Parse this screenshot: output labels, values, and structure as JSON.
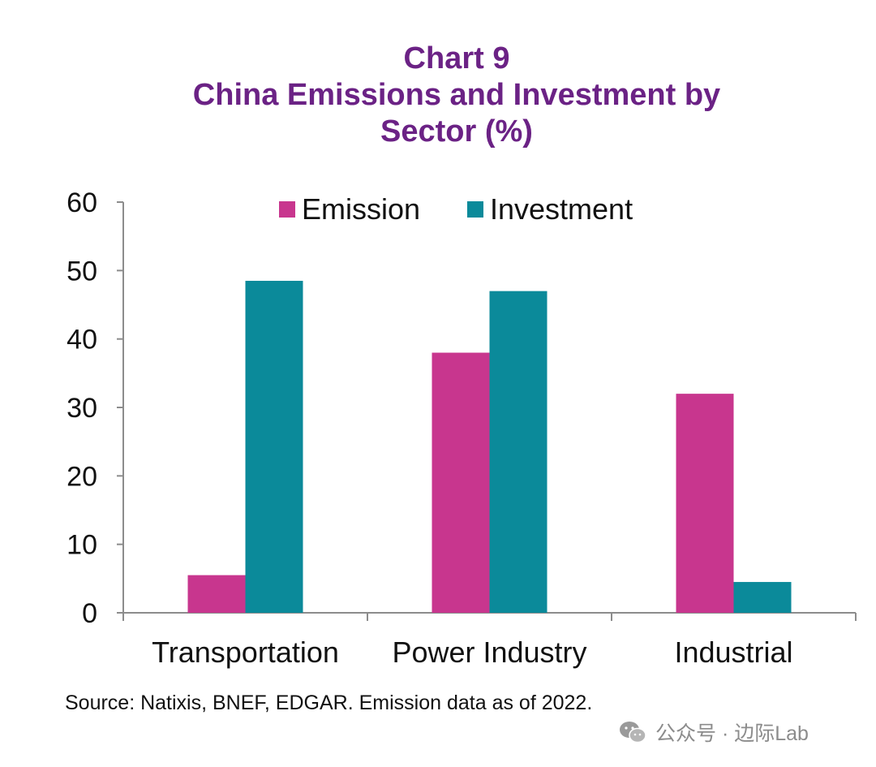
{
  "chart_data": {
    "type": "bar",
    "title_lines": [
      "Chart 9",
      "China Emissions and Investment by",
      "Sector (%)"
    ],
    "categories": [
      "Transportation",
      "Power Industry",
      "Industrial"
    ],
    "series": [
      {
        "name": "Emission",
        "color": "#c8368e",
        "values": [
          5.5,
          38,
          32
        ]
      },
      {
        "name": "Investment",
        "color": "#0b8a9a",
        "values": [
          48.5,
          47,
          4.5
        ]
      }
    ],
    "ylim": [
      0,
      60
    ],
    "yticks": [
      0,
      10,
      20,
      30,
      40,
      50,
      60
    ],
    "legend_position": "top",
    "grid": false
  },
  "source": "Source: Natixis, BNEF, EDGAR. Emission data as of 2022.",
  "watermark": {
    "text": "公众号 · 边际Lab",
    "icon": "wechat-icon"
  }
}
